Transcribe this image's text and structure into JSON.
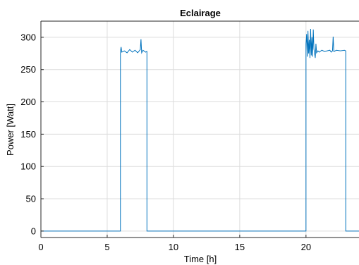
{
  "chart_data": {
    "type": "line",
    "title": "Eclairage",
    "xlabel": "Time [h]",
    "ylabel": "Power [Watt]",
    "xlim": [
      0,
      24
    ],
    "ylim": [
      -10,
      325
    ],
    "xticks": [
      0,
      5,
      10,
      15,
      20
    ],
    "yticks": [
      0,
      50,
      100,
      150,
      200,
      250,
      300
    ],
    "grid": true,
    "series": [
      {
        "color": "#0072bd",
        "x": [
          0,
          6.0,
          6.0,
          6.05,
          6.1,
          6.3,
          6.5,
          6.7,
          6.9,
          7.1,
          7.3,
          7.5,
          7.55,
          7.6,
          7.7,
          7.9,
          8.0,
          8.0,
          20.0,
          20.0,
          20.05,
          20.1,
          20.15,
          20.2,
          20.25,
          20.3,
          20.35,
          20.4,
          20.45,
          20.5,
          20.55,
          20.6,
          20.65,
          20.7,
          20.75,
          20.8,
          20.9,
          21.0,
          21.2,
          21.4,
          21.6,
          21.8,
          21.9,
          22.0,
          22.05,
          22.1,
          22.3,
          22.6,
          22.9,
          23.0,
          23.0,
          24
        ],
        "y": [
          0,
          0,
          278,
          285,
          277,
          279,
          276,
          281,
          277,
          280,
          276,
          281,
          297,
          276,
          280,
          277,
          278,
          0,
          0,
          290,
          305,
          270,
          310,
          275,
          296,
          268,
          313,
          272,
          300,
          270,
          312,
          282,
          275,
          268,
          290,
          276,
          279,
          277,
          280,
          278,
          279,
          280,
          277,
          279,
          301,
          278,
          280,
          279,
          280,
          279,
          0,
          0
        ]
      }
    ]
  }
}
